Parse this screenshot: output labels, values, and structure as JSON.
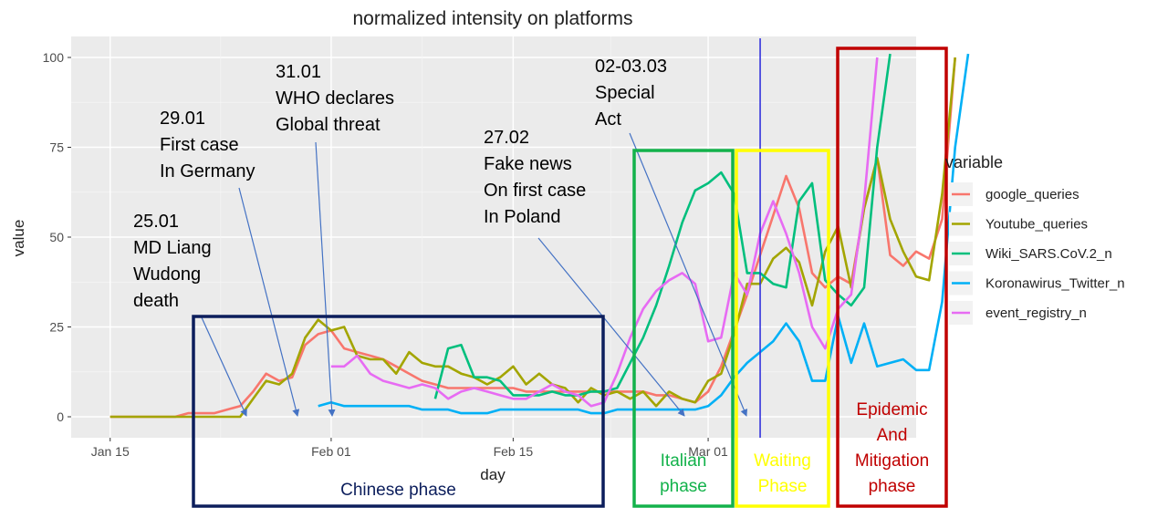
{
  "chart_data": {
    "type": "line",
    "title": "normalized intensity on platforms",
    "xlabel": "day",
    "ylabel": "value",
    "x_ticks": [
      "Jan 15",
      "Feb 01",
      "Feb 15",
      "Mar 01"
    ],
    "y_ticks": [
      "0",
      "25",
      "50",
      "75",
      "100"
    ],
    "ylim": [
      0,
      100
    ],
    "xlim": [
      "2020-01-12",
      "2020-03-17"
    ],
    "grid": true,
    "legend_title": "variable",
    "legend_position": "right",
    "series": [
      {
        "name": "google_queries",
        "color": "#F8766D",
        "start": "2020-01-15",
        "values": [
          0,
          0,
          0,
          0,
          0,
          0,
          1,
          1,
          1,
          2,
          3,
          7,
          12,
          10,
          11,
          20,
          23,
          24,
          19,
          18,
          17,
          16,
          14,
          12,
          10,
          9,
          8,
          8,
          8,
          8,
          8,
          8,
          7,
          7,
          7,
          7,
          7,
          7,
          7,
          7,
          7,
          7,
          6,
          6,
          5,
          4,
          7,
          14,
          24,
          34,
          45,
          56,
          67,
          58,
          40,
          36,
          39,
          37,
          58,
          72,
          45,
          42,
          46,
          44,
          55,
          100
        ]
      },
      {
        "name": "Youtube_queries",
        "color": "#A3A500",
        "start": "2020-01-15",
        "values": [
          0,
          0,
          0,
          0,
          0,
          0,
          0,
          0,
          0,
          0,
          0,
          5,
          10,
          9,
          12,
          22,
          27,
          24,
          25,
          17,
          16,
          16,
          12,
          18,
          15,
          14,
          14,
          12,
          11,
          9,
          11,
          14,
          9,
          12,
          9,
          8,
          4,
          8,
          6,
          7,
          5,
          7,
          3,
          7,
          5,
          4,
          10,
          12,
          23,
          37,
          37,
          44,
          47,
          43,
          31,
          46,
          53,
          36,
          58,
          72,
          55,
          46,
          39,
          38,
          62,
          100
        ]
      },
      {
        "name": "Wiki_SARS.CoV.2_n",
        "color": "#00BF7D",
        "start": "2020-02-09",
        "values": [
          5,
          19,
          20,
          11,
          11,
          10,
          6,
          6,
          6,
          7,
          6,
          6,
          7,
          7,
          8,
          15,
          22,
          31,
          42,
          54,
          63,
          65,
          68,
          62,
          40,
          40,
          37,
          36,
          60,
          65,
          38,
          34,
          31,
          36,
          75,
          101
        ]
      },
      {
        "name": "Koronawirus_Twitter_n",
        "color": "#00B0F6",
        "start": "2020-01-31",
        "values": [
          3,
          4,
          3,
          3,
          3,
          3,
          3,
          3,
          2,
          2,
          2,
          1,
          1,
          1,
          2,
          2,
          2,
          2,
          2,
          2,
          2,
          1,
          1,
          2,
          2,
          2,
          2,
          2,
          2,
          2,
          3,
          6,
          11,
          15,
          18,
          21,
          26,
          21,
          10,
          10,
          28,
          15,
          26,
          14,
          15,
          16,
          13,
          13,
          32,
          75,
          101
        ]
      },
      {
        "name": "event_registry_n",
        "color": "#E76BF3",
        "start": "2020-02-01",
        "values": [
          14,
          14,
          17,
          12,
          10,
          9,
          8,
          9,
          8,
          5,
          7,
          8,
          7,
          6,
          5,
          5,
          7,
          9,
          7,
          6,
          3,
          4,
          12,
          22,
          30,
          35,
          38,
          40,
          37,
          21,
          22,
          40,
          34,
          51,
          60,
          51,
          40,
          25,
          19,
          30,
          34,
          60,
          100
        ]
      }
    ],
    "vline_date": "2020-03-05",
    "vline_color": "#3333DD"
  },
  "annotations": [
    {
      "text": "25.01\nMD Liang\nWudong\ndeath"
    },
    {
      "text": "29.01\nFirst case\nIn Germany"
    },
    {
      "text": "31.01\nWHO declares\nGlobal threat"
    },
    {
      "text": "27.02\nFake news\nOn first case\nIn Poland"
    },
    {
      "text": "02-03.03\nSpecial\nAct"
    }
  ],
  "phases": [
    {
      "label": "Chinese phase",
      "color": "#0C1E5C"
    },
    {
      "label": "Italian\nphase",
      "color": "#13B24B"
    },
    {
      "label": "Waiting\nPhase",
      "color": "#FFFF00"
    },
    {
      "label": "Epidemic\nAnd\nMitigation\nphase",
      "color": "#C00000"
    }
  ]
}
